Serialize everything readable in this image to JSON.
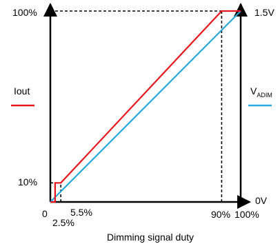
{
  "chart_data": {
    "type": "line",
    "xlabel": "Dimming signal duty",
    "x_unit": "%",
    "left_axis": {
      "ticks": [
        "0",
        "10%",
        "100%"
      ],
      "range": [
        0,
        100
      ]
    },
    "right_axis": {
      "ticks": [
        "0V",
        "1.5V"
      ],
      "range": [
        0,
        1.5
      ]
    },
    "x_range": [
      0,
      100
    ],
    "x_tick_labels": [
      "0",
      "2.5%",
      "5.5%",
      "90%",
      "100%"
    ],
    "series": [
      {
        "name": "Iout",
        "color": "#e8141c",
        "axis": "left",
        "points": [
          [
            0,
            0
          ],
          [
            2.5,
            0
          ],
          [
            2.5,
            10
          ],
          [
            5.5,
            10
          ],
          [
            90,
            100
          ],
          [
            100,
            100
          ]
        ]
      },
      {
        "name_main": "V",
        "name_sub": "ADIM",
        "color": "#27a8df",
        "axis": "right",
        "points": [
          [
            0,
            0
          ],
          [
            100,
            1.5
          ]
        ]
      }
    ],
    "guides": [
      {
        "from": [
          0,
          10
        ],
        "to": [
          5.5,
          10
        ]
      },
      {
        "from": [
          5.5,
          0
        ],
        "to": [
          5.5,
          10
        ]
      },
      {
        "from": [
          0,
          100
        ],
        "to": [
          90,
          100
        ]
      },
      {
        "from": [
          90,
          0
        ],
        "to": [
          90,
          100
        ]
      }
    ]
  }
}
